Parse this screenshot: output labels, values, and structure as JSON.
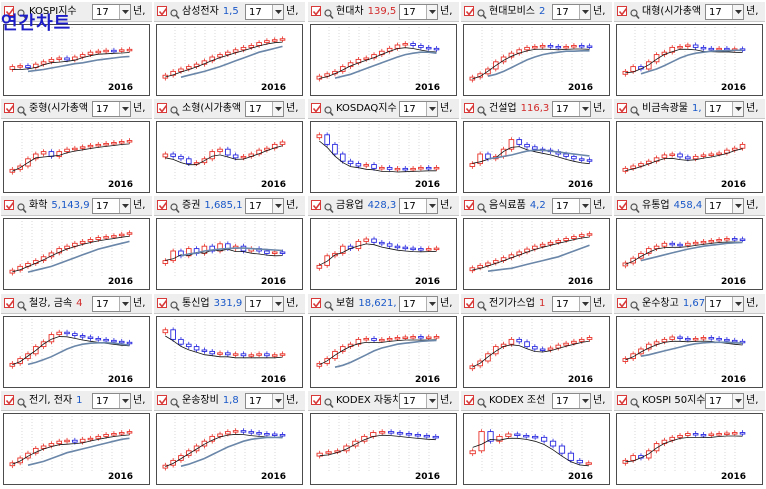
{
  "overlay_title": "연간차트",
  "colors": {
    "up": "#e8322a",
    "down": "#2a2ae0",
    "ma_fast": "#111111",
    "ma_slow": "#6a86a8",
    "grid": "#c0c0c0",
    "value": "#1a58c8",
    "value_neg": "#d22a2a"
  },
  "panels": [
    {
      "name": "KOSPI지수",
      "value": "",
      "period": "17",
      "unit": "년",
      "year": "2016",
      "chart_data": {
        "type": "candlestick",
        "closes": [
          30,
          32,
          28,
          35,
          40,
          45,
          48,
          44,
          50,
          55,
          60,
          62,
          64,
          63,
          65,
          66
        ],
        "ma_slow": [
          20,
          22,
          24,
          27,
          30,
          33,
          36,
          38,
          41,
          44,
          46,
          48,
          50,
          51
        ],
        "range": [
          0,
          100
        ]
      }
    },
    {
      "name": "삼성전자",
      "value": "1,5",
      "period": "17",
      "unit": "년",
      "year": "2016",
      "chart_data": {
        "type": "candlestick",
        "closes": [
          12,
          20,
          25,
          30,
          35,
          42,
          50,
          55,
          60,
          65,
          70,
          74,
          80,
          84,
          86,
          88
        ],
        "ma_slow": [
          8,
          12,
          16,
          20,
          25,
          30,
          36,
          42,
          48,
          54,
          60,
          64,
          68,
          72
        ],
        "range": [
          0,
          100
        ]
      }
    },
    {
      "name": "현대차",
      "value": "139,5",
      "value_color": "neg",
      "period": "17",
      "unit": "년",
      "year": "2016",
      "chart_data": {
        "type": "candlestick",
        "closes": [
          10,
          15,
          20,
          30,
          38,
          45,
          48,
          55,
          62,
          68,
          75,
          78,
          74,
          70,
          68,
          66
        ],
        "ma_slow": [
          6,
          10,
          14,
          20,
          26,
          32,
          38,
          44,
          50,
          55,
          58,
          60,
          60,
          58
        ],
        "range": [
          0,
          100
        ]
      }
    },
    {
      "name": "현대모비스",
      "value": "2",
      "period": "17",
      "unit": "년",
      "year": "2016",
      "chart_data": {
        "type": "candlestick",
        "closes": [
          8,
          15,
          25,
          40,
          50,
          58,
          65,
          70,
          72,
          74,
          72,
          70,
          72,
          74,
          73,
          72
        ],
        "ma_slow": [
          10,
          14,
          20,
          28,
          36,
          44,
          50,
          55,
          58,
          60,
          62,
          62,
          63,
          63
        ],
        "range": [
          0,
          100
        ]
      }
    },
    {
      "name": "대형(시가총액",
      "value": "",
      "period": "17",
      "unit": "년",
      "year": "2016",
      "chart_data": {
        "type": "candlestick",
        "closes": [
          20,
          30,
          25,
          40,
          55,
          60,
          70,
          72,
          75,
          70,
          68,
          66,
          68,
          66,
          67,
          65
        ],
        "ma_slow": [
          15,
          20,
          25,
          32,
          40,
          48,
          54,
          58,
          60,
          62,
          63,
          63,
          64,
          64
        ],
        "range": [
          0,
          100
        ]
      }
    },
    {
      "name": "중형(시가총액",
      "value": "",
      "period": "17",
      "unit": "년",
      "year": "2016",
      "chart_data": {
        "type": "candlestick",
        "closes": [
          18,
          25,
          40,
          50,
          55,
          45,
          55,
          60,
          62,
          65,
          68,
          70,
          72,
          74,
          76,
          78
        ],
        "ma_slow": [],
        "range": [
          0,
          100
        ]
      }
    },
    {
      "name": "소형(시가총액",
      "value": "",
      "period": "17",
      "unit": "년",
      "year": "2016",
      "chart_data": {
        "type": "candlestick",
        "closes": [
          50,
          45,
          40,
          30,
          32,
          40,
          55,
          60,
          48,
          42,
          45,
          50,
          58,
          62,
          70,
          75
        ],
        "ma_slow": [],
        "range": [
          0,
          100
        ]
      }
    },
    {
      "name": "KOSDAQ지수",
      "value": "",
      "period": "17",
      "unit": "년",
      "year": "2016",
      "chart_data": {
        "type": "candlestick",
        "closes": [
          90,
          70,
          50,
          35,
          30,
          25,
          28,
          20,
          22,
          18,
          20,
          18,
          20,
          22,
          20,
          22
        ],
        "ma_slow": [],
        "range": [
          0,
          100
        ]
      }
    },
    {
      "name": "건설업",
      "value": "116,3",
      "value_color": "neg",
      "period": "17",
      "unit": "년",
      "year": "2016",
      "chart_data": {
        "type": "candlestick",
        "closes": [
          30,
          50,
          40,
          45,
          60,
          80,
          70,
          65,
          60,
          58,
          55,
          50,
          45,
          40,
          38,
          35
        ],
        "ma_slow": [
          40,
          42,
          45,
          48,
          52,
          56,
          58,
          58,
          56,
          54,
          52,
          50,
          48,
          46
        ],
        "range": [
          0,
          100
        ]
      }
    },
    {
      "name": "비금속광물",
      "value": "1,",
      "period": "17",
      "unit": "년",
      "year": "2016",
      "chart_data": {
        "type": "candlestick",
        "closes": [
          20,
          25,
          30,
          35,
          42,
          48,
          50,
          44,
          40,
          45,
          48,
          50,
          52,
          58,
          62,
          70
        ],
        "ma_slow": [],
        "range": [
          0,
          100
        ]
      }
    },
    {
      "name": "화학",
      "value": "5,143,9",
      "period": "17",
      "unit": "년",
      "year": "2016",
      "chart_data": {
        "type": "candlestick",
        "closes": [
          10,
          18,
          24,
          30,
          38,
          46,
          55,
          60,
          66,
          70,
          74,
          78,
          80,
          82,
          85,
          88
        ],
        "ma_slow": [
          6,
          10,
          14,
          18,
          24,
          30,
          36,
          42,
          48,
          54,
          58,
          62,
          66,
          70
        ],
        "range": [
          0,
          100
        ]
      }
    },
    {
      "name": "증권",
      "value": "1,685,1",
      "period": "17",
      "unit": "년",
      "year": "2016",
      "chart_data": {
        "type": "candlestick",
        "closes": [
          30,
          50,
          40,
          55,
          45,
          60,
          50,
          65,
          55,
          60,
          50,
          55,
          50,
          45,
          48,
          46
        ],
        "ma_slow": [
          40,
          44,
          46,
          50,
          52,
          54,
          55,
          56,
          56,
          55,
          54,
          53,
          52,
          51
        ],
        "range": [
          0,
          100
        ]
      }
    },
    {
      "name": "금융업",
      "value": "428,3",
      "period": "17",
      "unit": "년",
      "year": "2016",
      "chart_data": {
        "type": "candlestick",
        "closes": [
          20,
          40,
          45,
          60,
          55,
          70,
          75,
          68,
          65,
          60,
          58,
          56,
          55,
          54,
          55,
          56
        ],
        "ma_slow": [],
        "range": [
          0,
          100
        ]
      }
    },
    {
      "name": "음식료품",
      "value": "4,2",
      "period": "17",
      "unit": "년",
      "year": "2016",
      "chart_data": {
        "type": "candlestick",
        "closes": [
          15,
          20,
          25,
          30,
          36,
          42,
          48,
          54,
          60,
          64,
          68,
          72,
          76,
          80,
          84,
          86
        ],
        "ma_slow": [
          8,
          10,
          12,
          14,
          18,
          22,
          26,
          30,
          34,
          38,
          44,
          50,
          56,
          62
        ],
        "range": [
          0,
          100
        ]
      }
    },
    {
      "name": "유통업",
      "value": "458,4",
      "period": "17",
      "unit": "년",
      "year": "2016",
      "chart_data": {
        "type": "candlestick",
        "closes": [
          25,
          35,
          45,
          55,
          60,
          66,
          64,
          62,
          66,
          68,
          70,
          72,
          74,
          76,
          75,
          74
        ],
        "ma_slow": [
          30,
          34,
          38,
          42,
          46,
          50,
          54,
          57,
          60,
          62,
          64,
          66,
          67,
          68
        ],
        "range": [
          0,
          100
        ]
      }
    },
    {
      "name": "철강, 금속",
      "value": "4",
      "value_color": "neg",
      "period": "17",
      "unit": "년",
      "year": "2016",
      "chart_data": {
        "type": "candlestick",
        "closes": [
          20,
          30,
          40,
          55,
          65,
          80,
          85,
          82,
          78,
          75,
          72,
          70,
          68,
          66,
          64,
          62
        ],
        "ma_slow": [
          18,
          22,
          28,
          34,
          42,
          50,
          56,
          60,
          62,
          63,
          63,
          62,
          60,
          58
        ],
        "range": [
          0,
          100
        ]
      }
    },
    {
      "name": "통신업",
      "value": "331,9",
      "period": "17",
      "unit": "년",
      "year": "2016",
      "chart_data": {
        "type": "candlestick",
        "closes": [
          90,
          70,
          60,
          55,
          48,
          45,
          40,
          42,
          38,
          40,
          36,
          38,
          40,
          36,
          38,
          40
        ],
        "ma_slow": [],
        "range": [
          0,
          100
        ]
      }
    },
    {
      "name": "보험",
      "value": "18,621,",
      "period": "17",
      "unit": "년",
      "year": "2016",
      "chart_data": {
        "type": "candlestick",
        "closes": [
          20,
          30,
          45,
          55,
          60,
          70,
          72,
          68,
          70,
          72,
          74,
          75,
          76,
          74,
          75,
          76
        ],
        "ma_slow": [
          12,
          16,
          22,
          30,
          38,
          46,
          52,
          56,
          60,
          62,
          64,
          66,
          67,
          68
        ],
        "range": [
          0,
          100
        ]
      }
    },
    {
      "name": "전기가스업",
      "value": "1",
      "value_color": "neg",
      "period": "17",
      "unit": "년",
      "year": "2016",
      "chart_data": {
        "type": "candlestick",
        "closes": [
          15,
          25,
          40,
          55,
          60,
          70,
          65,
          55,
          50,
          48,
          52,
          58,
          62,
          66,
          70,
          74
        ],
        "ma_slow": [],
        "range": [
          0,
          100
        ]
      }
    },
    {
      "name": "운수창고",
      "value": "1,67",
      "period": "17",
      "unit": "년",
      "year": "2016",
      "chart_data": {
        "type": "candlestick",
        "closes": [
          30,
          40,
          50,
          60,
          65,
          70,
          75,
          72,
          70,
          72,
          74,
          72,
          70,
          68,
          66,
          64
        ],
        "ma_slow": [
          35,
          38,
          42,
          46,
          50,
          54,
          58,
          61,
          63,
          64,
          64,
          64,
          63,
          62
        ],
        "range": [
          0,
          100
        ]
      }
    },
    {
      "name": "전기, 전자",
      "value": "1",
      "period": "17",
      "unit": "년",
      "year": "2016",
      "chart_data": {
        "type": "candlestick",
        "closes": [
          15,
          25,
          35,
          45,
          50,
          55,
          60,
          62,
          58,
          64,
          66,
          70,
          74,
          76,
          78,
          80
        ],
        "ma_slow": [
          10,
          14,
          18,
          24,
          30,
          36,
          40,
          44,
          48,
          52,
          56,
          60,
          64,
          66
        ],
        "range": [
          0,
          100
        ]
      }
    },
    {
      "name": "운송장비",
      "value": "1,8",
      "period": "17",
      "unit": "년",
      "year": "2016",
      "chart_data": {
        "type": "candlestick",
        "closes": [
          10,
          20,
          30,
          40,
          50,
          60,
          70,
          75,
          80,
          82,
          80,
          78,
          76,
          75,
          74,
          73
        ],
        "ma_slow": [
          8,
          12,
          18,
          24,
          32,
          40,
          48,
          54,
          60,
          64,
          66,
          68,
          68,
          68
        ],
        "range": [
          0,
          100
        ]
      }
    },
    {
      "name": "KODEX 자동차",
      "value": "",
      "period": "17",
      "unit": "년",
      "year": "2016",
      "chart_data": {
        "type": "candlestick",
        "closes": [
          35,
          38,
          40,
          50,
          60,
          70,
          78,
          80,
          78,
          76,
          74,
          72,
          70,
          69
        ],
        "ma_slow": [],
        "range": [
          0,
          100
        ]
      }
    },
    {
      "name": "KODEX 조선",
      "value": "",
      "period": "17",
      "unit": "년",
      "year": "2016",
      "chart_data": {
        "type": "candlestick",
        "closes": [
          40,
          80,
          60,
          70,
          75,
          72,
          70,
          68,
          60,
          50,
          35,
          20,
          15,
          15
        ],
        "ma_slow": [],
        "range": [
          0,
          100
        ]
      }
    },
    {
      "name": "KOSPI 50지수",
      "value": "",
      "period": "17",
      "unit": "년",
      "year": "2016",
      "chart_data": {
        "type": "candlestick",
        "closes": [
          20,
          30,
          25,
          40,
          55,
          62,
          68,
          72,
          76,
          74,
          72,
          75,
          76,
          77,
          78,
          76
        ],
        "ma_slow": [],
        "range": [
          0,
          100
        ]
      }
    }
  ]
}
